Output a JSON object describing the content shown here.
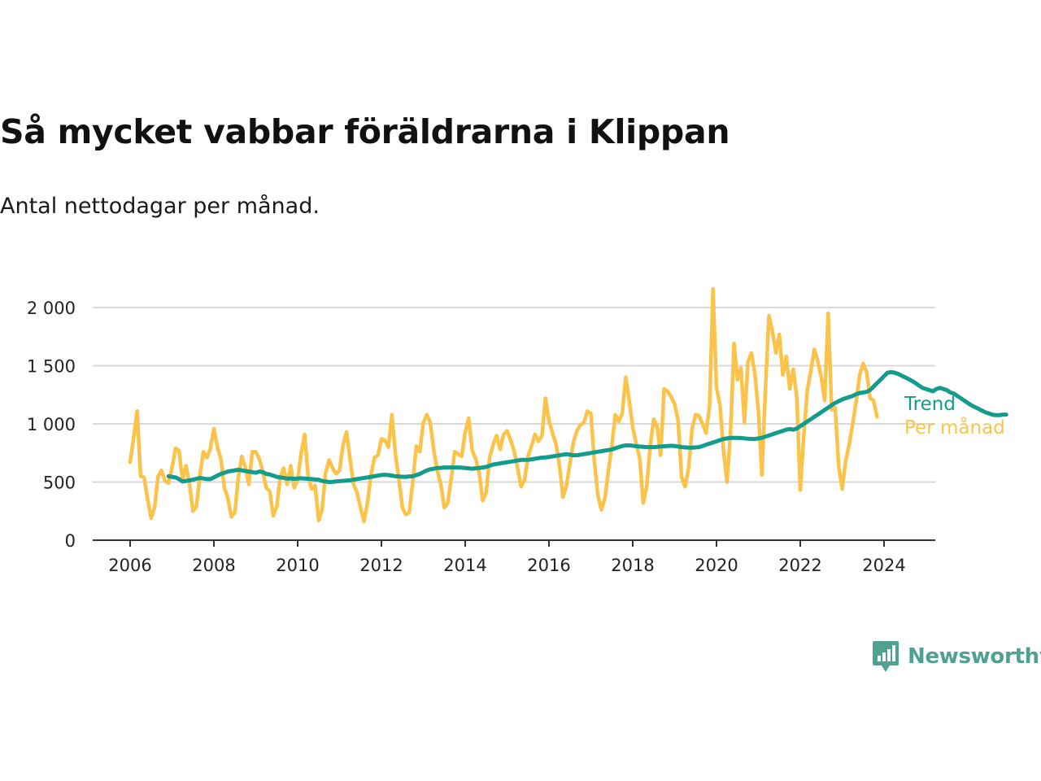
{
  "title": "Så mycket vabbar föräldrarna i Klippan",
  "subtitle": "Antal nettodagar per månad.",
  "brand": "Newsworthy",
  "colors": {
    "per_month": "#fcc34a",
    "trend": "#139c8b",
    "grid": "#d9d9d9",
    "axis": "#333333",
    "brand": "#4fa191"
  },
  "chart_data": {
    "type": "line",
    "ylim": [
      0,
      2000
    ],
    "yticks": [
      0,
      500,
      1000,
      1500,
      2000
    ],
    "ytick_labels": [
      "0",
      "500",
      "1 000",
      "1 500",
      "2 000"
    ],
    "xlim": [
      2006,
      2024.5
    ],
    "xticks": [
      2006,
      2008,
      2010,
      2012,
      2014,
      2016,
      2018,
      2020,
      2022,
      2024
    ],
    "xtick_labels": [
      "2006",
      "2008",
      "2010",
      "2012",
      "2014",
      "2016",
      "2018",
      "2020",
      "2022",
      "2024"
    ],
    "grid": true,
    "series": [
      {
        "name": "Per månad",
        "start": "2006-01",
        "values": [
          670,
          880,
          1110,
          550,
          540,
          350,
          190,
          280,
          550,
          600,
          510,
          490,
          620,
          790,
          770,
          520,
          640,
          480,
          250,
          290,
          560,
          760,
          710,
          790,
          960,
          800,
          700,
          450,
          360,
          200,
          240,
          540,
          720,
          630,
          480,
          760,
          760,
          700,
          590,
          450,
          420,
          210,
          290,
          540,
          620,
          480,
          640,
          450,
          520,
          750,
          910,
          550,
          440,
          470,
          170,
          260,
          580,
          690,
          620,
          570,
          600,
          820,
          930,
          700,
          480,
          410,
          280,
          160,
          320,
          560,
          710,
          730,
          870,
          860,
          800,
          1080,
          740,
          520,
          280,
          220,
          240,
          510,
          810,
          760,
          1010,
          1080,
          1010,
          770,
          600,
          480,
          280,
          320,
          530,
          760,
          740,
          720,
          930,
          1050,
          770,
          700,
          580,
          340,
          410,
          710,
          820,
          900,
          780,
          910,
          940,
          860,
          770,
          620,
          460,
          520,
          720,
          810,
          910,
          850,
          900,
          1220,
          1030,
          920,
          830,
          640,
          370,
          470,
          660,
          840,
          940,
          990,
          1010,
          1110,
          1090,
          680,
          390,
          260,
          360,
          590,
          810,
          1080,
          1020,
          1090,
          1400,
          1200,
          970,
          830,
          700,
          320,
          460,
          810,
          1040,
          980,
          730,
          1300,
          1280,
          1230,
          1170,
          1030,
          540,
          460,
          620,
          960,
          1080,
          1070,
          1000,
          920,
          1150,
          2160,
          1310,
          1160,
          770,
          500,
          920,
          1690,
          1380,
          1480,
          1010,
          1530,
          1610,
          1430,
          1110,
          560,
          1290,
          1930,
          1800,
          1610,
          1770,
          1420,
          1580,
          1300,
          1470,
          1230,
          430,
          900,
          1290,
          1450,
          1640,
          1540,
          1400,
          1200,
          1950,
          1120,
          1140,
          640,
          440,
          680,
          820,
          1000,
          1190,
          1420,
          1520,
          1450,
          1220,
          1200,
          1060
        ]
      },
      {
        "name": "Trend",
        "start": "2006-12",
        "values": [
          550,
          545,
          540,
          525,
          505,
          510,
          515,
          520,
          528,
          535,
          530,
          525,
          525,
          540,
          555,
          570,
          580,
          590,
          595,
          600,
          605,
          600,
          595,
          590,
          585,
          580,
          590,
          585,
          570,
          565,
          555,
          545,
          540,
          535,
          530,
          530,
          528,
          530,
          532,
          530,
          528,
          525,
          522,
          520,
          510,
          505,
          500,
          502,
          505,
          508,
          510,
          512,
          515,
          520,
          525,
          530,
          535,
          540,
          545,
          550,
          555,
          560,
          562,
          560,
          555,
          550,
          548,
          545,
          545,
          548,
          550,
          560,
          570,
          585,
          600,
          610,
          615,
          620,
          622,
          625,
          625,
          625,
          625,
          625,
          623,
          620,
          618,
          615,
          618,
          620,
          625,
          630,
          640,
          650,
          655,
          660,
          665,
          670,
          675,
          680,
          685,
          690,
          690,
          690,
          695,
          700,
          705,
          710,
          712,
          715,
          720,
          725,
          730,
          735,
          740,
          735,
          730,
          730,
          735,
          740,
          745,
          750,
          755,
          760,
          765,
          770,
          775,
          780,
          790,
          800,
          810,
          815,
          815,
          812,
          808,
          805,
          803,
          800,
          800,
          800,
          802,
          805,
          808,
          810,
          812,
          810,
          805,
          800,
          798,
          795,
          795,
          798,
          800,
          810,
          820,
          830,
          840,
          850,
          860,
          870,
          875,
          880,
          880,
          880,
          878,
          875,
          872,
          870,
          870,
          875,
          880,
          890,
          900,
          910,
          920,
          930,
          940,
          950,
          955,
          950,
          960,
          980,
          1000,
          1020,
          1040,
          1060,
          1080,
          1100,
          1120,
          1140,
          1160,
          1180,
          1195,
          1210,
          1220,
          1230,
          1240,
          1255,
          1265,
          1270,
          1275,
          1290,
          1320,
          1350,
          1380,
          1410,
          1440,
          1445,
          1440,
          1430,
          1415,
          1400,
          1385,
          1370,
          1350,
          1330,
          1310,
          1300,
          1290,
          1280,
          1300,
          1310,
          1300,
          1290,
          1270,
          1260,
          1240,
          1220,
          1200,
          1180,
          1160,
          1145,
          1130,
          1115,
          1100,
          1090,
          1080,
          1075,
          1075,
          1080,
          1080
        ]
      }
    ]
  }
}
